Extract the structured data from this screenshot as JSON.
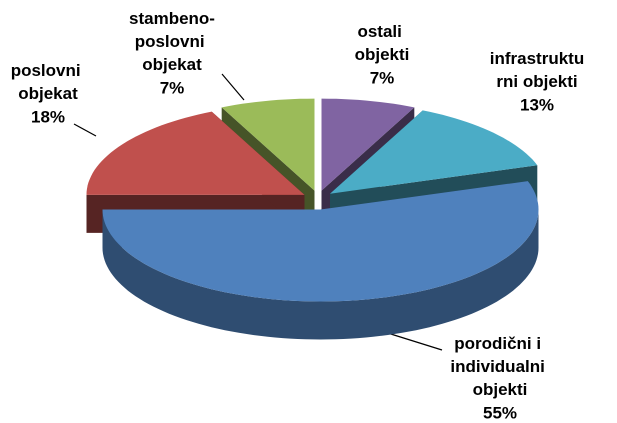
{
  "chart_data": {
    "type": "pie",
    "categories": [
      "ostali objekti",
      "infrastrukturni objekti",
      "porodični i individualni objekti",
      "poslovni objekat",
      "stambeno-poslovni objekat"
    ],
    "values": [
      7,
      13,
      55,
      18,
      7
    ],
    "value_labels": [
      "7%",
      "13%",
      "55%",
      "18%",
      "7%"
    ],
    "colors": [
      "#8064a2",
      "#4bacc6",
      "#4f81bd",
      "#c0504d",
      "#9bbb59"
    ]
  }
}
